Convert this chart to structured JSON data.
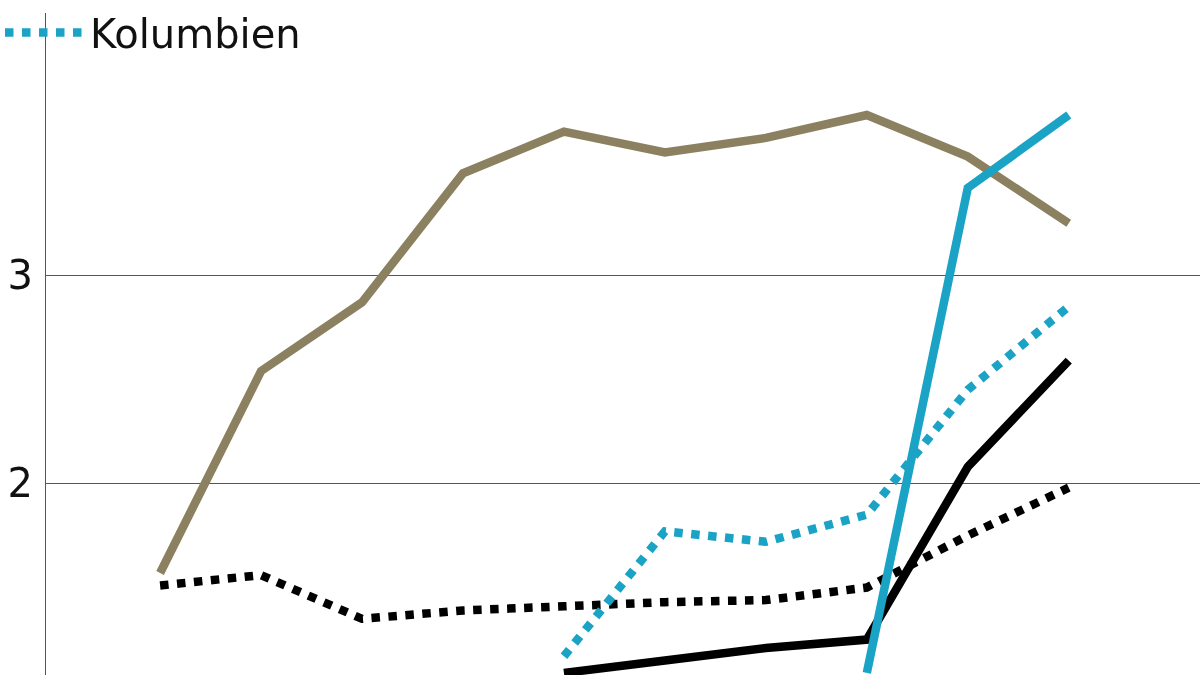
{
  "chart_data": {
    "type": "line",
    "categories": [
      null,
      null,
      null,
      null,
      null,
      null,
      null,
      null,
      null,
      null
    ],
    "series": [
      {
        "color": "#8b8060",
        "line_style": "solid",
        "values": [
          1.57,
          2.54,
          2.87,
          3.49,
          3.69,
          3.59,
          3.66,
          3.77,
          3.57,
          3.25
        ]
      },
      {
        "color": "#000000",
        "line_style": "dotted",
        "values": [
          1.51,
          1.56,
          1.35,
          1.39,
          1.41,
          1.43,
          1.44,
          1.5,
          1.75,
          1.98
        ]
      },
      {
        "name": "Kolumbien",
        "color": "#1ba3c6",
        "line_style": "dotted",
        "values": [
          null,
          null,
          null,
          null,
          1.17,
          1.77,
          1.72,
          1.85,
          2.45,
          2.85
        ]
      },
      {
        "color": "#000000",
        "line_style": "solid",
        "values": [
          null,
          null,
          null,
          null,
          1.09,
          1.15,
          1.21,
          1.25,
          2.08,
          2.59
        ]
      },
      {
        "color": "#1ba3c6",
        "line_style": "solid",
        "values": [
          null,
          null,
          null,
          null,
          null,
          null,
          null,
          1.09,
          3.42,
          3.77
        ]
      }
    ],
    "ylim": [
      1.08,
      4.26
    ],
    "yticks": [
      2,
      3
    ],
    "grid": "y",
    "legend": "top left",
    "tick_labels": "y",
    "marker": "none"
  }
}
